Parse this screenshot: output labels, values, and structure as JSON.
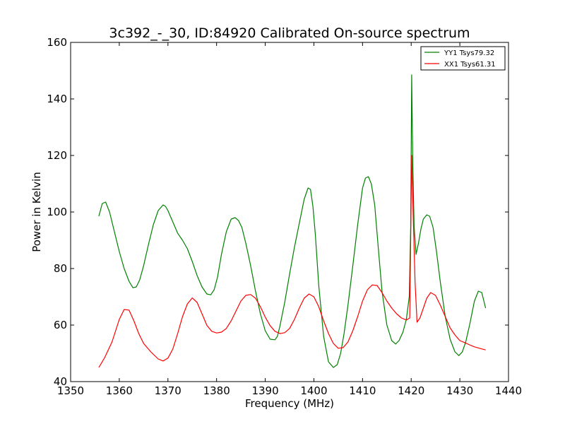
{
  "chart_data": {
    "type": "line",
    "title": "3c392_-_30, ID:84920 Calibrated On-source spectrum",
    "xlabel": "Frequency (MHz)",
    "ylabel": "Power in Kelvin",
    "xlim": [
      1350,
      1440
    ],
    "ylim": [
      40,
      160
    ],
    "xticks": [
      1350,
      1360,
      1370,
      1380,
      1390,
      1400,
      1410,
      1420,
      1430,
      1440
    ],
    "yticks": [
      40,
      60,
      80,
      100,
      120,
      140,
      160
    ],
    "grid": false,
    "legend_position": "top-right",
    "series": [
      {
        "name": "YY1 Tsys79.32",
        "color": "#008000",
        "x": [
          1355.8,
          1356.5,
          1357.2,
          1358,
          1359,
          1360,
          1361,
          1362,
          1362.8,
          1363.5,
          1364.2,
          1365,
          1366,
          1367,
          1368,
          1369,
          1369.5,
          1370,
          1371,
          1372,
          1373,
          1374,
          1375,
          1376,
          1377,
          1378,
          1378.8,
          1379.5,
          1380.2,
          1381,
          1382,
          1383,
          1383.8,
          1384.5,
          1385.2,
          1386,
          1387,
          1388,
          1389,
          1390,
          1391,
          1392,
          1392.5,
          1393,
          1394,
          1395,
          1396,
          1397,
          1398,
          1398.8,
          1399.3,
          1399.8,
          1400.3,
          1401,
          1402,
          1403,
          1404,
          1404.8,
          1405.5,
          1406.2,
          1407,
          1408,
          1409,
          1410,
          1410.6,
          1411.2,
          1411.8,
          1412.5,
          1413.2,
          1414,
          1415,
          1416,
          1416.8,
          1417.5,
          1418.3,
          1419,
          1419.6,
          1419.9,
          1420.1,
          1420.3,
          1420.6,
          1421,
          1421.5,
          1422,
          1422.5,
          1423.2,
          1423.8,
          1424.5,
          1425.2,
          1426,
          1427,
          1428,
          1429,
          1429.8,
          1430.5,
          1431.2,
          1432,
          1433,
          1433.8,
          1434.5,
          1435.3
        ],
        "y": [
          98.5,
          103,
          103.5,
          100,
          93,
          86,
          80,
          75.5,
          73.2,
          73.5,
          76,
          81,
          88.5,
          95.5,
          100.5,
          102.5,
          102,
          100.5,
          96.5,
          92.5,
          90,
          87,
          82.5,
          77.5,
          73.5,
          71,
          70.7,
          72.5,
          77,
          85,
          93,
          97.5,
          98,
          97,
          94.5,
          89,
          81,
          72,
          64,
          58,
          55,
          54.8,
          56,
          59.5,
          68,
          78,
          87.5,
          96,
          104.5,
          108.5,
          108,
          102,
          92,
          74,
          56,
          47,
          45,
          46,
          50,
          57,
          67,
          81,
          95.5,
          108.5,
          112,
          112.5,
          110,
          102.5,
          88,
          72,
          60,
          54.5,
          53.3,
          54.5,
          57.5,
          62,
          70,
          95,
          148.5,
          120,
          95,
          85,
          89,
          94,
          97.5,
          99,
          98.5,
          94.5,
          86,
          75,
          63,
          55,
          50.5,
          49.2,
          50.5,
          54,
          60,
          68.5,
          72,
          71.5,
          66
        ]
      },
      {
        "name": "XX1 Tsys61.31",
        "color": "#ff0000",
        "x": [
          1355.8,
          1357,
          1358.5,
          1360,
          1361,
          1362,
          1363,
          1364,
          1365,
          1366.5,
          1368,
          1369,
          1370,
          1371,
          1372,
          1373,
          1374,
          1375,
          1376,
          1377,
          1378,
          1379,
          1380,
          1381,
          1382,
          1383,
          1384,
          1385,
          1386,
          1387,
          1388,
          1389,
          1390,
          1391,
          1392,
          1393,
          1394,
          1395,
          1396,
          1397,
          1398,
          1399,
          1400,
          1401,
          1402,
          1403,
          1404,
          1405,
          1406,
          1407,
          1408,
          1409,
          1410,
          1411,
          1412,
          1413,
          1414,
          1415,
          1416,
          1417,
          1418,
          1419,
          1419.7,
          1420.1,
          1420.4,
          1420.8,
          1421.2,
          1421.8,
          1422.5,
          1423.2,
          1424,
          1425,
          1426,
          1427,
          1428,
          1429,
          1430,
          1431,
          1432,
          1433,
          1434,
          1435.3
        ],
        "y": [
          45,
          48.5,
          54,
          62,
          65.5,
          65.3,
          61.5,
          57,
          53.5,
          50.5,
          48,
          47.3,
          48.3,
          51.5,
          57,
          63,
          67.5,
          69.6,
          68,
          64,
          59.9,
          57.8,
          57.2,
          57.5,
          58.8,
          61.5,
          65,
          68.5,
          70.5,
          70.8,
          69.5,
          66.5,
          62.8,
          59.8,
          57.8,
          57,
          57.3,
          58.8,
          62,
          66,
          69.5,
          71,
          70,
          66.5,
          61.5,
          57,
          53.5,
          51.8,
          52,
          54,
          58,
          63,
          68.5,
          72.5,
          74.2,
          74,
          71.5,
          68.5,
          66,
          64,
          62.5,
          61.8,
          62.5,
          120,
          100,
          75,
          61,
          62.5,
          66,
          69.5,
          71.5,
          70.5,
          67,
          63,
          59,
          56.5,
          54.5,
          53.8,
          53,
          52.3,
          51.8,
          51.2
        ]
      }
    ]
  }
}
